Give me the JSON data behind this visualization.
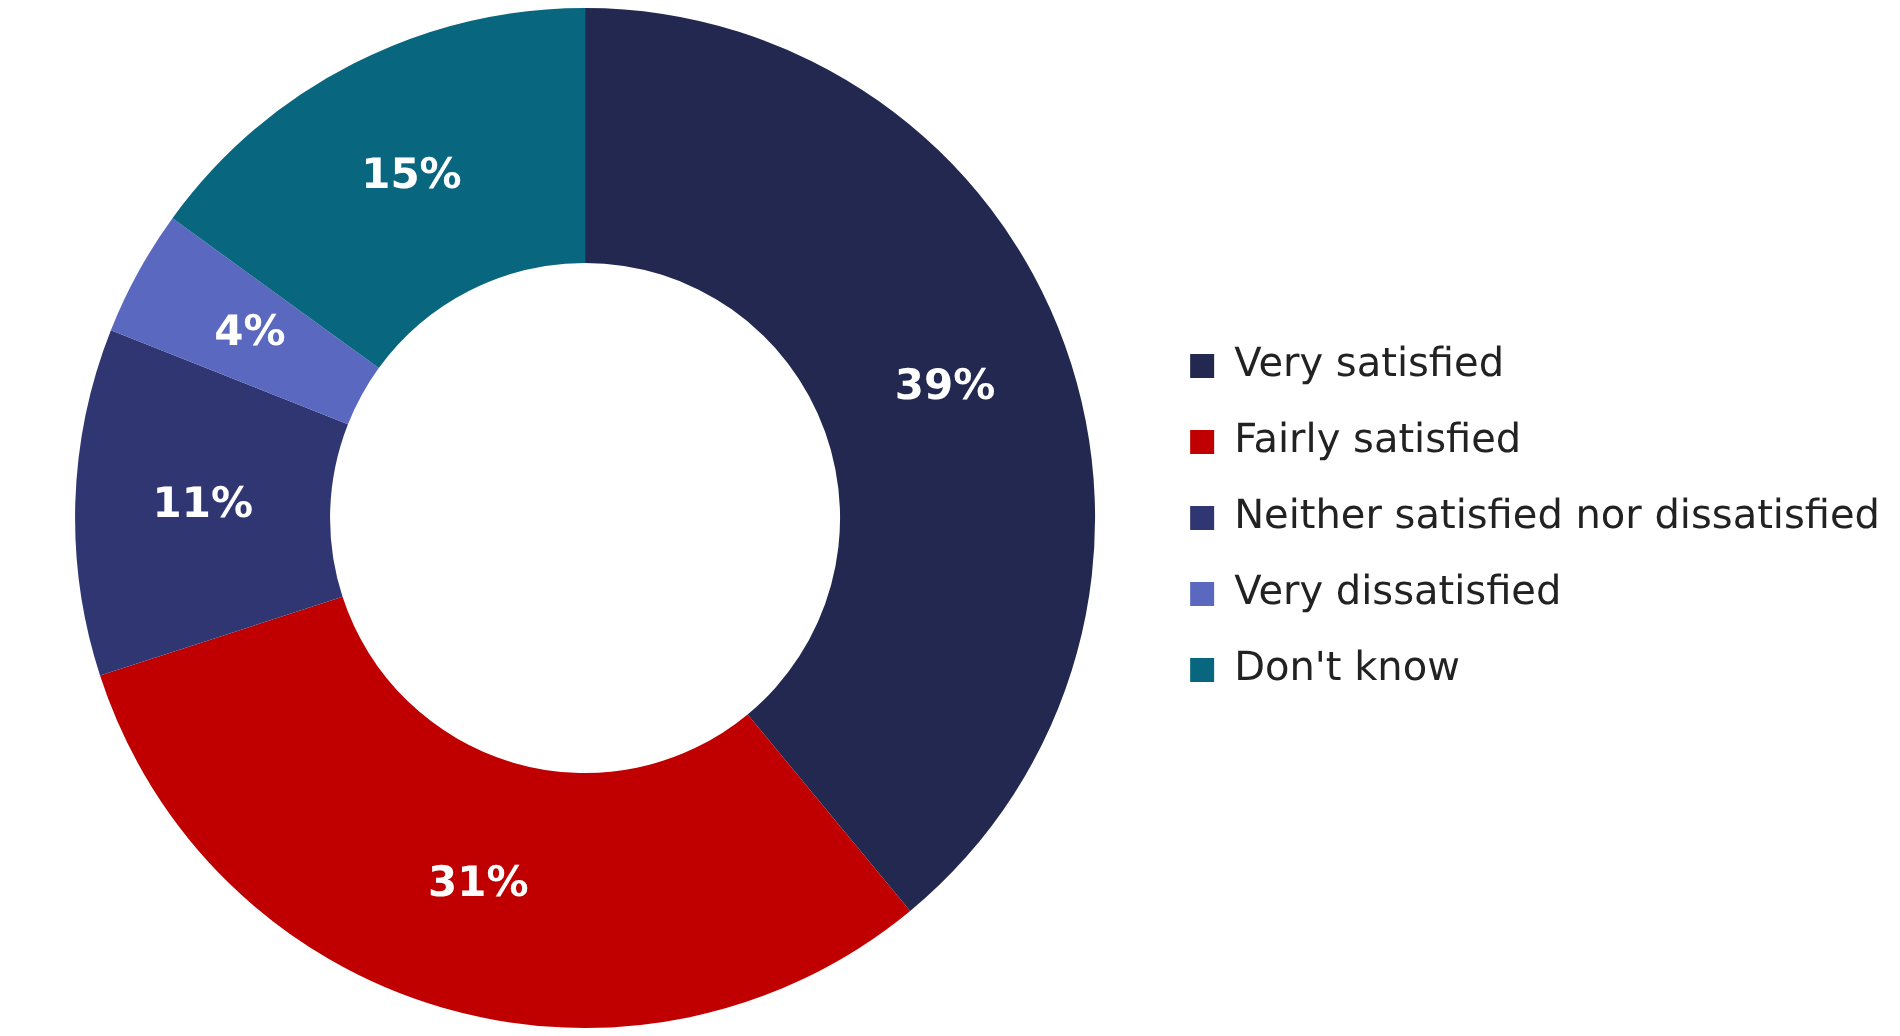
{
  "chart_data": {
    "type": "donut",
    "categories": [
      "Very satisfied",
      "Fairly satisfied",
      "Neither satisfied nor dissatisfied",
      "Very dissatisfied",
      "Don't know"
    ],
    "values": [
      39,
      31,
      11,
      4,
      15
    ],
    "value_labels": [
      "39%",
      "31%",
      "11%",
      "4%",
      "15%"
    ],
    "colors": [
      "#22284f",
      "#c00000",
      "#2f3672",
      "#5a68c0",
      "#09667f"
    ],
    "legend": "right"
  }
}
